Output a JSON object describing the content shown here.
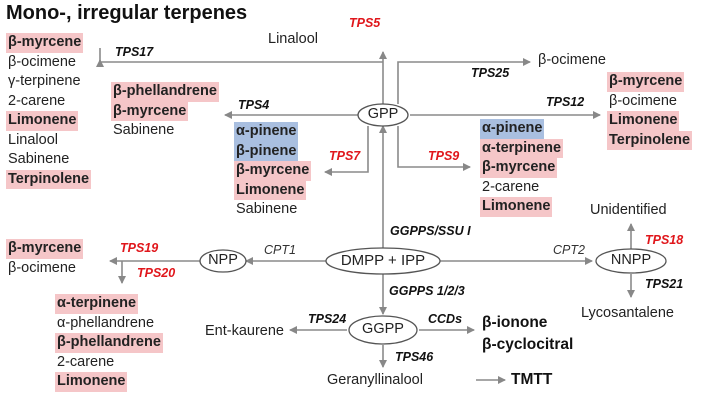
{
  "title": "Mono-, irregular terpenes",
  "nodes": {
    "gpp": "GPP",
    "npp": "NPP",
    "dmpp_ipp": "DMPP + IPP",
    "nnpp": "NNPP",
    "ggpp": "GGPP",
    "linalool": "Linalool",
    "beta_ocimene": "β-ocimene",
    "unidentified": "Unidentified",
    "lycosantalene": "Lycosantalene",
    "ent_kaurene": "Ent-kaurene",
    "geranyllinalool": "Geranyllinalool",
    "beta_ionone": "β-ionone",
    "beta_cyclocitral": "β-cyclocitral",
    "tmtt": "TMTT"
  },
  "enzymes": {
    "tps5": "TPS5",
    "tps17": "TPS17",
    "tps25": "TPS25",
    "tps4": "TPS4",
    "tps12": "TPS12",
    "tps7": "TPS7",
    "tps9": "TPS9",
    "ggpps_ssu": "GGPPS/SSU I",
    "ggpps123": "GGPPS 1/2/3",
    "cpt1": "CPT1",
    "cpt2": "CPT2",
    "tps19": "TPS19",
    "tps20": "TPS20",
    "tps18": "TPS18",
    "tps21": "TPS21",
    "tps24": "TPS24",
    "ccds": "CCDs",
    "tps46": "TPS46"
  },
  "lists": {
    "tps17_products": [
      {
        "text": "β-myrcene",
        "hl": "pink"
      },
      {
        "text": "β-ocimene",
        "hl": ""
      },
      {
        "text": "γ-terpinene",
        "hl": ""
      },
      {
        "text": "2-carene",
        "hl": ""
      },
      {
        "text": "Limonene",
        "hl": "pink"
      },
      {
        "text": "Linalool",
        "hl": ""
      },
      {
        "text": "Sabinene",
        "hl": ""
      },
      {
        "text": "Terpinolene",
        "hl": "pink"
      }
    ],
    "tps4_products": [
      {
        "text": "β-phellandrene",
        "hl": "pink"
      },
      {
        "text": "β-myrcene",
        "hl": "pink"
      },
      {
        "text": "Sabinene",
        "hl": ""
      }
    ],
    "tps7_products": [
      {
        "text": "α-pinene",
        "hl": "blue"
      },
      {
        "text": "β-pinene",
        "hl": "blue"
      },
      {
        "text": "β-myrcene",
        "hl": "pink"
      },
      {
        "text": "Limonene",
        "hl": "pink"
      },
      {
        "text": "Sabinene",
        "hl": ""
      }
    ],
    "tps9_products": [
      {
        "text": "α-pinene",
        "hl": "blue"
      },
      {
        "text": "α-terpinene",
        "hl": "pink"
      },
      {
        "text": "β-myrcene",
        "hl": "pink"
      },
      {
        "text": "2-carene",
        "hl": ""
      },
      {
        "text": "Limonene",
        "hl": "pink"
      }
    ],
    "tps12_products": [
      {
        "text": "β-myrcene",
        "hl": "pink"
      },
      {
        "text": "β-ocimene",
        "hl": ""
      },
      {
        "text": "Limonene",
        "hl": "pink"
      },
      {
        "text": "Terpinolene",
        "hl": "pink"
      }
    ],
    "tps19_products": [
      {
        "text": "β-myrcene",
        "hl": "pink"
      },
      {
        "text": "β-ocimene",
        "hl": ""
      }
    ],
    "tps20_products": [
      {
        "text": "α-terpinene",
        "hl": "pink"
      },
      {
        "text": "α-phellandrene",
        "hl": ""
      },
      {
        "text": "β-phellandrene",
        "hl": "pink"
      },
      {
        "text": "2-carene",
        "hl": ""
      },
      {
        "text": "Limonene",
        "hl": "pink"
      }
    ]
  },
  "colors": {
    "pink_highlight": "#f5c6c8",
    "blue_highlight": "#a9bfe0",
    "red_enzyme": "#e0161b",
    "arrow": "#888888"
  }
}
